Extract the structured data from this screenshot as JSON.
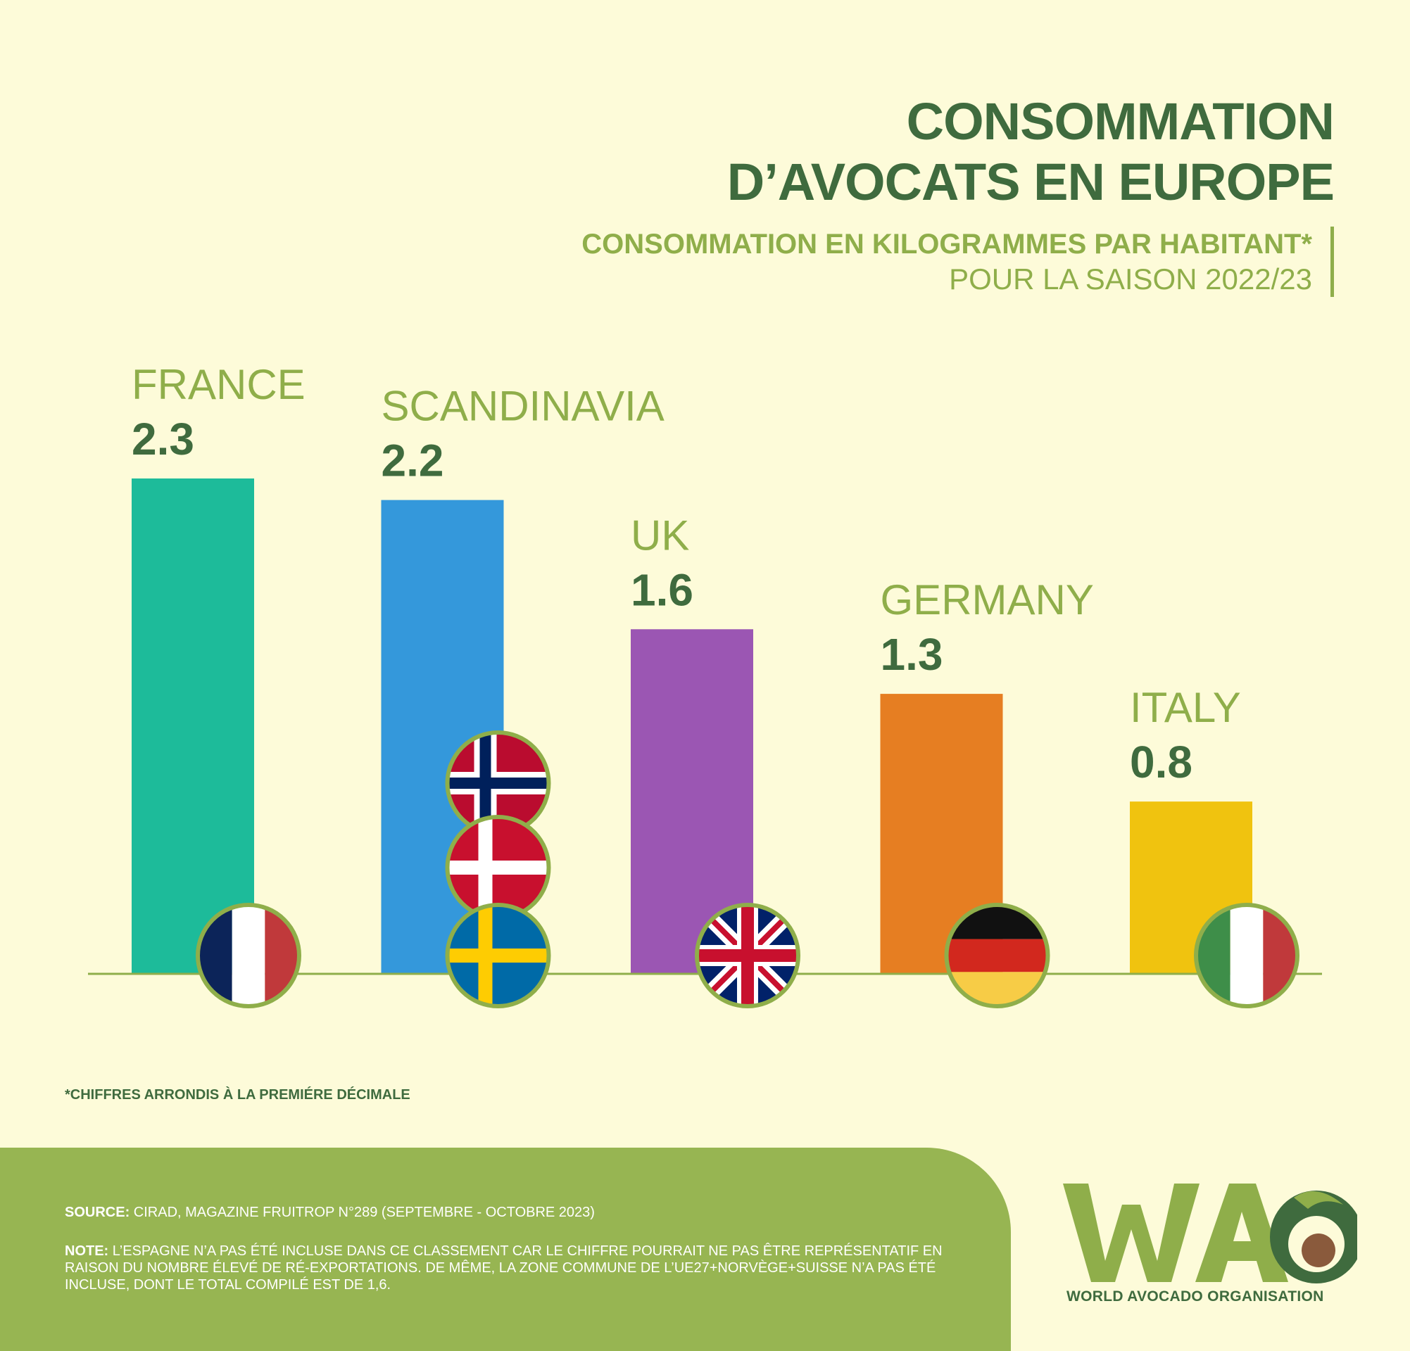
{
  "header": {
    "title_line1": "CONSOMMATION",
    "title_line2": "D’AVOCATS EN EUROPE",
    "subtitle_line1": "CONSOMMATION EN KILOGRAMMES PAR HABITANT*",
    "subtitle_line2": "POUR LA SAISON 2022/23"
  },
  "chart_data": {
    "type": "bar",
    "categories": [
      "FRANCE",
      "SCANDINAVIA",
      "UK",
      "GERMANY",
      "ITALY"
    ],
    "values": [
      2.3,
      2.2,
      1.6,
      1.3,
      0.8
    ],
    "value_labels": [
      "2.3",
      "2.2",
      "1.6",
      "1.3",
      "0.8"
    ],
    "bar_colors": [
      "#1dbb9a",
      "#3498db",
      "#9b56b3",
      "#e67e22",
      "#f0c30f"
    ],
    "flags": [
      [
        "france-flag"
      ],
      [
        "norway-flag",
        "denmark-flag",
        "sweden-flag"
      ],
      [
        "uk-flag"
      ],
      [
        "germany-flag"
      ],
      [
        "italy-flag"
      ]
    ],
    "ylim": [
      0,
      2.3
    ],
    "grid": false
  },
  "footnote": "*CHIFFRES ARRONDIS À LA PREMIÉRE DÉCIMALE",
  "footer": {
    "source_label": "SOURCE:",
    "source_text": " CIRAD, MAGAZINE FRUITROP N°289 (SEPTEMBRE - OCTOBRE 2023)",
    "note_label": "NOTE:",
    "note_text": " L’ESPAGNE N’A PAS ÉTÉ INCLUSE DANS CE CLASSEMENT CAR LE CHIFFRE POURRAIT NE PAS ÊTRE REPRÉSENTATIF EN RAISON DU NOMBRE ÉLEVÉ DE RÉ-EXPORTATIONS. DE MÊME, LA ZONE COMMUNE DE L’UE27+NORVÈGE+SUISSE N’A PAS ÉTÉ INCLUSE, DONT LE TOTAL COMPILÉ EST DE 1,6."
  },
  "logo": {
    "letters": "WA",
    "name": "WORLD AVOCADO ORGANISATION"
  },
  "colors": {
    "background": "#fdfbd9",
    "dark_green": "#3f6b3e",
    "light_green": "#8fae4a",
    "footer_green": "#97b552"
  }
}
